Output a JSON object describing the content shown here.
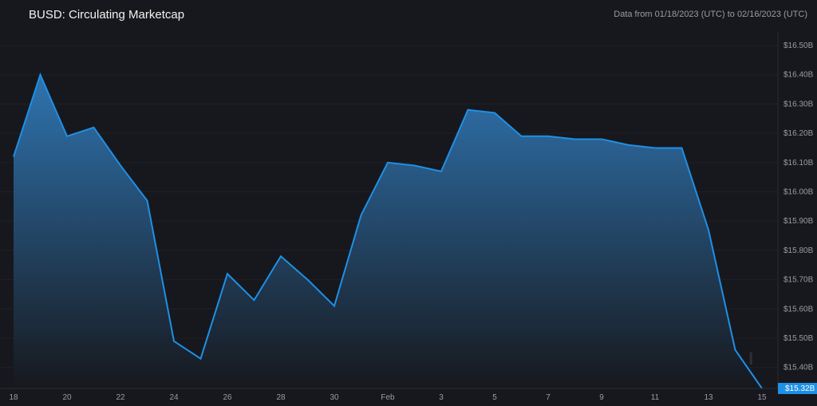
{
  "header": {
    "title": "BUSD: Circulating Marketcap",
    "range": "Data from 01/18/2023 (UTC) to 02/16/2023 (UTC)"
  },
  "watermark": "MESSARI",
  "colors": {
    "line": "#1e90e6",
    "fill_top": "#2f74b0",
    "fill_bottom": "#17181d",
    "background": "#17181d",
    "badge": "#1e90e6"
  },
  "chart_data": {
    "type": "area",
    "title": "BUSD: Circulating Marketcap",
    "x": [
      "01-18",
      "01-19",
      "01-20",
      "01-21",
      "01-22",
      "01-23",
      "01-24",
      "01-25",
      "01-26",
      "01-27",
      "01-28",
      "01-29",
      "01-30",
      "01-31",
      "02-01",
      "02-02",
      "02-03",
      "02-04",
      "02-05",
      "02-06",
      "02-07",
      "02-08",
      "02-09",
      "02-10",
      "02-11",
      "02-12",
      "02-13",
      "02-14",
      "02-15"
    ],
    "values": [
      16.12,
      16.4,
      16.19,
      16.22,
      16.09,
      15.97,
      15.49,
      15.43,
      15.72,
      15.63,
      15.78,
      15.7,
      15.61,
      15.92,
      16.1,
      16.09,
      16.07,
      16.28,
      16.27,
      16.19,
      16.19,
      16.18,
      16.18,
      16.16,
      16.15,
      16.15,
      15.87,
      15.46,
      15.32
    ],
    "unit": "USD billions",
    "ylim": [
      15.32,
      16.53
    ],
    "y_ticks": [
      "$16.50B",
      "$16.40B",
      "$16.30B",
      "$16.20B",
      "$16.10B",
      "$16.00B",
      "$15.90B",
      "$15.80B",
      "$15.70B",
      "$15.60B",
      "$15.50B",
      "$15.40B"
    ],
    "y_tick_values": [
      16.5,
      16.4,
      16.3,
      16.2,
      16.1,
      16.0,
      15.9,
      15.8,
      15.7,
      15.6,
      15.5,
      15.4
    ],
    "x_ticks": [
      "18",
      "20",
      "22",
      "24",
      "26",
      "28",
      "30",
      "Feb",
      "3",
      "5",
      "7",
      "9",
      "11",
      "13",
      "15"
    ],
    "x_tick_index": [
      0,
      2,
      4,
      6,
      8,
      10,
      12,
      14,
      16,
      18,
      20,
      22,
      24,
      26,
      28
    ],
    "last_value_label": "$15.32B",
    "grid": true,
    "legend": "none"
  }
}
